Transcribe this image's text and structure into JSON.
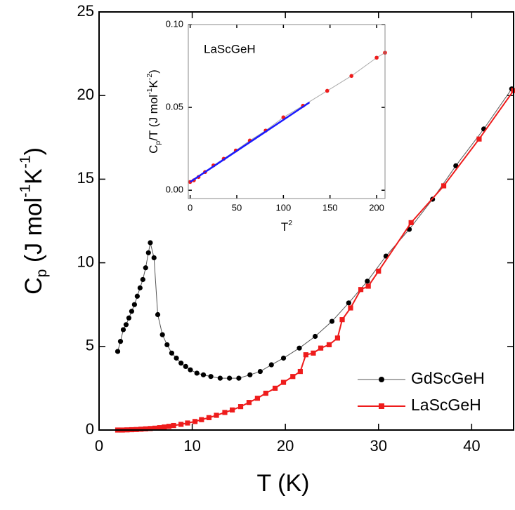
{
  "chart_data": [
    {
      "type": "line",
      "xlabel": "T (K)",
      "ylabel": [
        {
          "text": "C"
        },
        {
          "text": "p",
          "shift": "sub"
        },
        {
          "text": " (J mol"
        },
        {
          "text": "-1",
          "shift": "super"
        },
        {
          "text": "K"
        },
        {
          "text": "-1",
          "shift": "super"
        },
        {
          "text": ")"
        }
      ],
      "xlim": [
        0,
        44.5
      ],
      "ylim": [
        0,
        25
      ],
      "xticks": [
        0,
        10,
        20,
        30,
        40
      ],
      "yticks": [
        0,
        5,
        10,
        15,
        20,
        25
      ],
      "legend": "lower right",
      "series": [
        {
          "name": "GdScGeH",
          "color": "#000000",
          "line_color": "#555555",
          "marker": "circle",
          "x": [
            2.0,
            2.3,
            2.6,
            2.9,
            3.2,
            3.5,
            3.8,
            4.1,
            4.4,
            4.7,
            5.0,
            5.3,
            5.5,
            5.9,
            6.3,
            6.8,
            7.3,
            7.8,
            8.3,
            8.8,
            9.3,
            9.8,
            10.5,
            11.2,
            12.0,
            13.0,
            14.0,
            15.0,
            16.2,
            17.3,
            18.5,
            19.8,
            21.5,
            23.2,
            25.0,
            26.8,
            28.8,
            30.8,
            33.3,
            35.8,
            38.3,
            41.3,
            44.3
          ],
          "values": [
            4.7,
            5.3,
            6.0,
            6.3,
            6.7,
            7.1,
            7.5,
            8.0,
            8.5,
            9.0,
            9.7,
            10.6,
            11.2,
            10.3,
            6.9,
            5.7,
            5.1,
            4.6,
            4.3,
            4.0,
            3.8,
            3.6,
            3.4,
            3.3,
            3.2,
            3.1,
            3.1,
            3.1,
            3.3,
            3.5,
            3.9,
            4.3,
            4.9,
            5.6,
            6.5,
            7.6,
            8.9,
            10.4,
            12.0,
            13.8,
            15.8,
            18.0,
            20.4
          ]
        },
        {
          "name": "LaScGeH",
          "color": "#ee1c1c",
          "line_color": "#ee1c1c",
          "marker": "square",
          "x": [
            2.0,
            2.5,
            3.0,
            3.5,
            4.0,
            4.5,
            5.0,
            5.5,
            6.0,
            6.5,
            7.0,
            7.5,
            8.0,
            8.8,
            9.5,
            10.3,
            11.0,
            11.8,
            12.6,
            13.5,
            14.3,
            15.2,
            16.1,
            17.0,
            17.9,
            18.9,
            19.8,
            20.8,
            21.6,
            22.2,
            23.0,
            23.8,
            24.7,
            25.6,
            26.1,
            27.0,
            28.1,
            28.9,
            30.0,
            33.5,
            37.0,
            40.8,
            44.5
          ],
          "values": [
            0.0,
            0.0,
            0.01,
            0.02,
            0.03,
            0.05,
            0.07,
            0.09,
            0.11,
            0.14,
            0.18,
            0.22,
            0.27,
            0.34,
            0.42,
            0.51,
            0.62,
            0.74,
            0.88,
            1.05,
            1.2,
            1.4,
            1.65,
            1.9,
            2.2,
            2.5,
            2.85,
            3.2,
            3.5,
            4.5,
            4.6,
            4.9,
            5.1,
            5.5,
            6.6,
            7.3,
            8.4,
            8.6,
            9.5,
            12.4,
            14.6,
            17.4,
            20.3
          ]
        }
      ]
    },
    {
      "type": "line",
      "annotation": "LaScGeH",
      "xlabel": [
        {
          "text": "T"
        },
        {
          "text": "2",
          "shift": "super"
        }
      ],
      "ylabel": [
        {
          "text": "C"
        },
        {
          "text": "p",
          "shift": "sub"
        },
        {
          "text": "/T (J mol"
        },
        {
          "text": "-1",
          "shift": "super"
        },
        {
          "text": "K"
        },
        {
          "text": "-2",
          "shift": "super"
        },
        {
          "text": ")"
        }
      ],
      "xlim": [
        -2,
        209
      ],
      "ylim": [
        -0.005,
        0.1
      ],
      "xticks": [
        0,
        50,
        100,
        150,
        200
      ],
      "yticks": [
        {
          "value": 0,
          "label": "0.00"
        },
        {
          "value": 0.05,
          "label": "0.05"
        },
        {
          "value": 0.1,
          "label": "0.10"
        }
      ],
      "series": [
        {
          "color": "#ee1c1c",
          "line_color": "#aaaaaa",
          "marker": "circle",
          "x": [
            0,
            4,
            9,
            16,
            25,
            36,
            49,
            64,
            81,
            100,
            121,
            147,
            173,
            200,
            209
          ],
          "values": [
            0.005,
            0.006,
            0.008,
            0.011,
            0.015,
            0.019,
            0.024,
            0.03,
            0.036,
            0.044,
            0.051,
            0.06,
            0.069,
            0.08,
            0.083
          ]
        },
        {
          "color": "#1a1aff",
          "line_color": "#1a1aff",
          "marker": "none",
          "x": [
            0,
            128
          ],
          "values": [
            0.005,
            0.053
          ]
        }
      ]
    }
  ]
}
